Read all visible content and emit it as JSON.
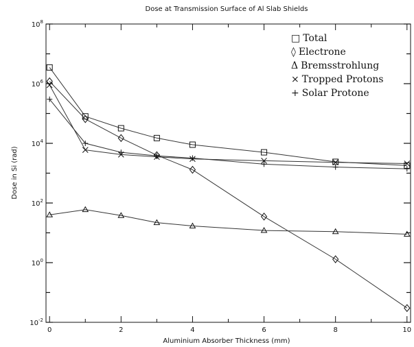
{
  "chart_data": {
    "type": "line",
    "title": "Dose at Transmission Surface of Al Slab Shields",
    "xlabel": "Aluminium Absorber Thickness (mm)",
    "ylabel": "Dose in Si (rad)",
    "y_scale": "log",
    "xlim": [
      -0.1,
      10.1
    ],
    "ylim_exp": [
      -2,
      8
    ],
    "x_ticks": [
      "0",
      "2",
      "4",
      "6",
      "8",
      "10"
    ],
    "y_ticks": [
      {
        "exp": 8,
        "label": "10",
        "sup": "8"
      },
      {
        "exp": 6,
        "label": "10",
        "sup": "6"
      },
      {
        "exp": 4,
        "label": "10",
        "sup": "4"
      },
      {
        "exp": 2,
        "label": "10",
        "sup": "2"
      },
      {
        "exp": 0,
        "label": "10",
        "sup": "0"
      },
      {
        "exp": -2,
        "label": "10",
        "sup": "-2"
      }
    ],
    "legend_position": "top-right",
    "series": [
      {
        "name": "Total",
        "marker": "square",
        "symbol": "□",
        "x": [
          0,
          1,
          2,
          3,
          4,
          6,
          8,
          10
        ],
        "y": [
          3500000.0,
          80000.0,
          32000.0,
          15000.0,
          9000.0,
          5000.0,
          2400.0,
          1800.0
        ]
      },
      {
        "name": "Electrone",
        "marker": "diamond",
        "symbol": "◊",
        "x": [
          0,
          1,
          2,
          3,
          4,
          6,
          8,
          10
        ],
        "y": [
          1200000.0,
          65000.0,
          15000.0,
          4000.0,
          1300.0,
          35,
          1.3,
          0.03
        ]
      },
      {
        "name": "Bremsstrohlung",
        "marker": "triangle",
        "symbol": "Δ",
        "x": [
          0,
          1,
          2,
          3,
          4,
          6,
          8,
          10
        ],
        "y": [
          40,
          60,
          38,
          22,
          17,
          12,
          11,
          9
        ]
      },
      {
        "name": "Tropped Protons",
        "marker": "cross",
        "symbol": "×",
        "x": [
          0,
          1,
          2,
          3,
          4,
          6,
          8,
          10
        ],
        "y": [
          900000.0,
          6000.0,
          4200.0,
          3500.0,
          3000.0,
          2600.0,
          2300.0,
          2100.0
        ]
      },
      {
        "name": "Solar Protone",
        "marker": "plus",
        "symbol": "+",
        "x": [
          0,
          1,
          2,
          3,
          4,
          6,
          8,
          10
        ],
        "y": [
          300000.0,
          10000.0,
          5000.0,
          3800.0,
          3200.0,
          2000.0,
          1600.0,
          1400.0
        ]
      }
    ]
  }
}
